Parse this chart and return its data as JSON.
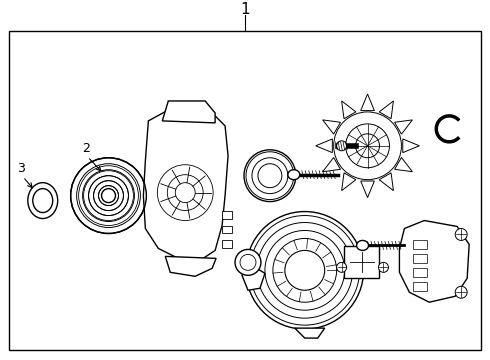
{
  "title": "1",
  "label_2": "2",
  "label_3": "3",
  "bg_color": "#ffffff",
  "border_color": "#000000",
  "line_color": "#000000",
  "line_width": 1.0,
  "fig_width": 4.9,
  "fig_height": 3.6,
  "dpi": 100
}
